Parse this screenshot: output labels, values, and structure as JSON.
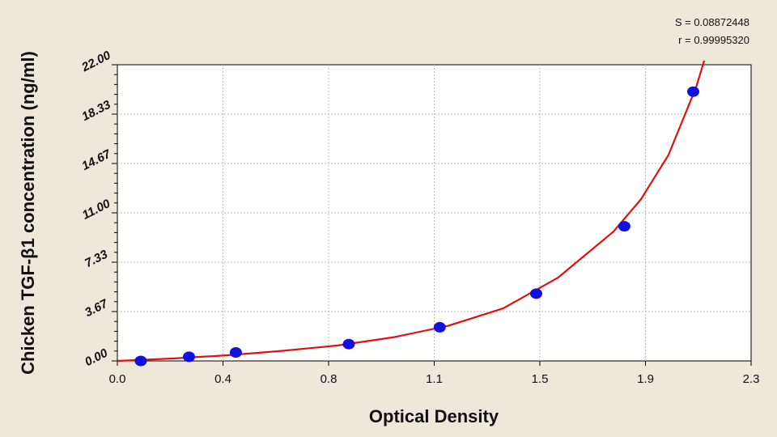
{
  "chart_data": {
    "type": "scatter",
    "title": "",
    "xlabel": "Optical Density",
    "ylabel": "Chicken TGF-β1 concentration (ng/ml)",
    "xlim": [
      0.0,
      2.3
    ],
    "ylim": [
      0.0,
      22.0
    ],
    "x_ticks": [
      "0.0",
      "0.4",
      "0.8",
      "1.1",
      "1.5",
      "1.9",
      "2.3"
    ],
    "y_ticks": [
      "0.00",
      "3.67",
      "7.33",
      "11.00",
      "14.67",
      "18.33",
      "22.00"
    ],
    "grid": true,
    "points": {
      "x": [
        0.085,
        0.26,
        0.43,
        0.84,
        1.17,
        1.52,
        1.84,
        2.09
      ],
      "y": [
        0.0,
        0.31,
        0.63,
        1.25,
        2.5,
        5.0,
        10.0,
        20.0
      ]
    },
    "fit_curve": {
      "x": [
        0.0,
        0.2,
        0.4,
        0.6,
        0.8,
        1.0,
        1.2,
        1.4,
        1.6,
        1.8,
        1.9,
        2.0,
        2.1,
        2.13
      ],
      "y": [
        0.0,
        0.18,
        0.42,
        0.75,
        1.15,
        1.75,
        2.6,
        3.9,
        6.2,
        9.6,
        12.0,
        15.3,
        20.3,
        22.3
      ]
    },
    "point_color": "#1010e0",
    "curve_color": "#e01010",
    "annotations": {
      "S": "S = 0.08872448",
      "r": "r = 0.99995320"
    }
  }
}
